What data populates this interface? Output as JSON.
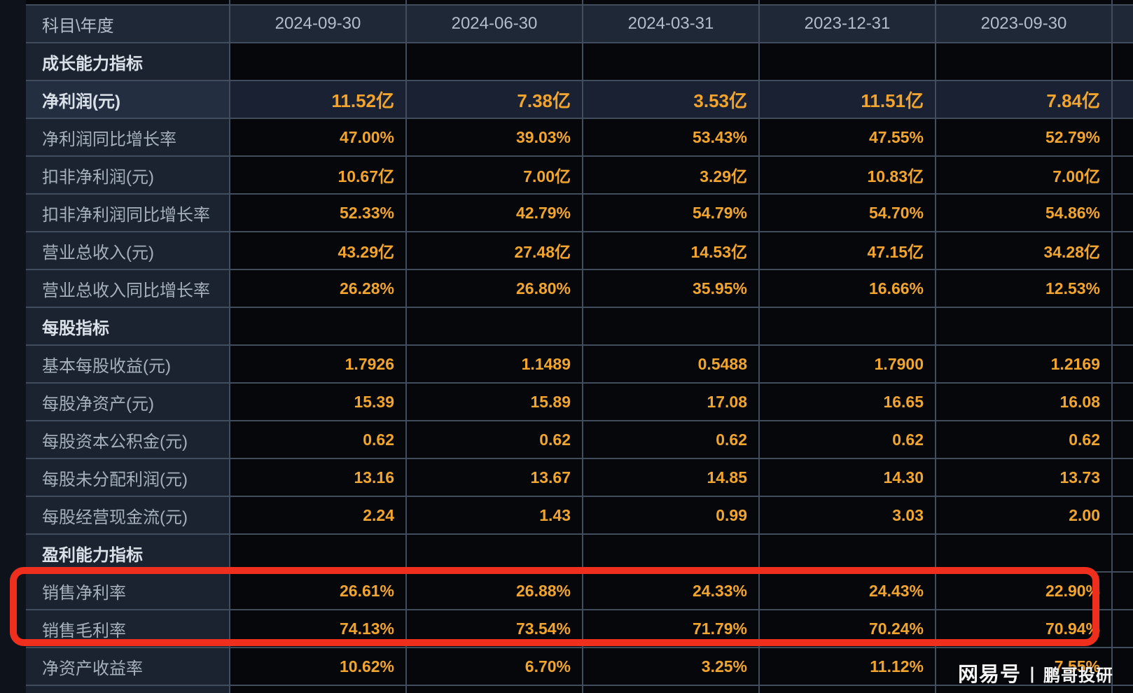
{
  "table": {
    "corner_label": "科目\\年度",
    "columns": [
      "2024-09-30",
      "2024-06-30",
      "2024-03-31",
      "2023-12-31",
      "2023-09-30"
    ],
    "rows": [
      {
        "label": "成长能力指标",
        "kind": "section",
        "values": [
          "",
          "",
          "",
          "",
          ""
        ]
      },
      {
        "label": "净利润(元)",
        "kind": "highlight",
        "values": [
          "11.52亿",
          "7.38亿",
          "3.53亿",
          "11.51亿",
          "7.84亿"
        ]
      },
      {
        "label": "净利润同比增长率",
        "kind": "data",
        "values": [
          "47.00%",
          "39.03%",
          "53.43%",
          "47.55%",
          "52.79%"
        ]
      },
      {
        "label": "扣非净利润(元)",
        "kind": "data",
        "values": [
          "10.67亿",
          "7.00亿",
          "3.29亿",
          "10.83亿",
          "7.00亿"
        ]
      },
      {
        "label": "扣非净利润同比增长率",
        "kind": "data",
        "values": [
          "52.33%",
          "42.79%",
          "54.79%",
          "54.70%",
          "54.86%"
        ]
      },
      {
        "label": "营业总收入(元)",
        "kind": "data",
        "values": [
          "43.29亿",
          "27.48亿",
          "14.53亿",
          "47.15亿",
          "34.28亿"
        ]
      },
      {
        "label": "营业总收入同比增长率",
        "kind": "data",
        "values": [
          "26.28%",
          "26.80%",
          "35.95%",
          "16.66%",
          "12.53%"
        ]
      },
      {
        "label": "每股指标",
        "kind": "section",
        "values": [
          "",
          "",
          "",
          "",
          ""
        ]
      },
      {
        "label": "基本每股收益(元)",
        "kind": "data",
        "values": [
          "1.7926",
          "1.1489",
          "0.5488",
          "1.7900",
          "1.2169"
        ]
      },
      {
        "label": "每股净资产(元)",
        "kind": "data",
        "values": [
          "15.39",
          "15.89",
          "17.08",
          "16.65",
          "16.08"
        ]
      },
      {
        "label": "每股资本公积金(元)",
        "kind": "data",
        "values": [
          "0.62",
          "0.62",
          "0.62",
          "0.62",
          "0.62"
        ]
      },
      {
        "label": "每股未分配利润(元)",
        "kind": "data",
        "values": [
          "13.16",
          "13.67",
          "14.85",
          "14.30",
          "13.73"
        ]
      },
      {
        "label": "每股经营现金流(元)",
        "kind": "data",
        "values": [
          "2.24",
          "1.43",
          "0.99",
          "3.03",
          "2.00"
        ]
      },
      {
        "label": "盈利能力指标",
        "kind": "section",
        "values": [
          "",
          "",
          "",
          "",
          ""
        ]
      },
      {
        "label": "销售净利率",
        "kind": "data",
        "values": [
          "26.61%",
          "26.88%",
          "24.33%",
          "24.43%",
          "22.90%"
        ]
      },
      {
        "label": "销售毛利率",
        "kind": "data",
        "values": [
          "74.13%",
          "73.54%",
          "71.79%",
          "70.24%",
          "70.94%"
        ]
      },
      {
        "label": "净资产收益率",
        "kind": "data",
        "values": [
          "10.62%",
          "6.70%",
          "3.25%",
          "11.12%",
          "7.55%"
        ]
      }
    ]
  },
  "annotation": {
    "shape": "rounded-rectangle",
    "color": "#ee2f1d",
    "rows_highlighted": [
      "销售净利率",
      "销售毛利率"
    ]
  },
  "watermark": {
    "brand": "网易号",
    "divider": "丨",
    "name": "鹏哥投研"
  },
  "colors": {
    "accent_orange": "#f1a52f",
    "annotation_red": "#ee2f1d",
    "header_bg": "#1e2836",
    "label_bg": "#1b2330",
    "data_bg": "#05070b",
    "highlight_row_bg": "#192132",
    "grid_line": "#414d5c"
  }
}
